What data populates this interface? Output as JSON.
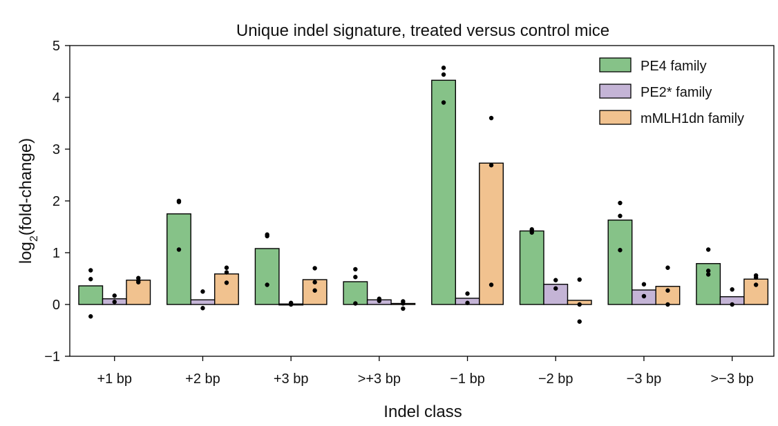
{
  "chart_data": {
    "type": "bar",
    "title": "Unique indel signature, treated versus control mice",
    "xlabel": "Indel class",
    "ylabel_main": "log",
    "ylabel_sub": "2",
    "ylabel_rest": "(fold-change)",
    "ylim": [
      -1,
      5
    ],
    "yticks": [
      -1,
      0,
      1,
      2,
      3,
      4,
      5
    ],
    "ytick_labels": [
      "−1",
      "0",
      "1",
      "2",
      "3",
      "4",
      "5"
    ],
    "categories": [
      "+1 bp",
      "+2 bp",
      "+3 bp",
      ">+3 bp",
      "−1 bp",
      "−2 bp",
      "−3 bp",
      ">−3 bp"
    ],
    "legend_position": "top-right",
    "series": [
      {
        "name": "PE4 family",
        "color": "#86c288",
        "values": [
          0.36,
          1.75,
          1.08,
          0.44,
          4.33,
          1.42,
          1.63,
          0.79
        ],
        "points": [
          [
            0.66,
            0.49,
            -0.23
          ],
          [
            2.0,
            1.98,
            1.06
          ],
          [
            1.35,
            1.32,
            0.38
          ],
          [
            0.68,
            0.53,
            0.02
          ],
          [
            4.57,
            4.44,
            3.9
          ],
          [
            1.45,
            1.42,
            1.39
          ],
          [
            1.96,
            1.71,
            1.05
          ],
          [
            1.06,
            0.65,
            0.58
          ]
        ]
      },
      {
        "name": "PE2* family",
        "color": "#c4b4d6",
        "values": [
          0.11,
          0.09,
          0.01,
          0.09,
          0.12,
          0.39,
          0.28,
          0.15
        ],
        "points": [
          [
            0.17,
            0.05
          ],
          [
            0.25,
            -0.07
          ],
          [
            0.03,
            0.0
          ],
          [
            0.11,
            0.07
          ],
          [
            0.21,
            0.03
          ],
          [
            0.47,
            0.31
          ],
          [
            0.39,
            0.16
          ],
          [
            0.29,
            0.0
          ]
        ]
      },
      {
        "name": "mMLH1dn family",
        "color": "#f1c28f",
        "values": [
          0.47,
          0.59,
          0.48,
          0.02,
          2.73,
          0.08,
          0.35,
          0.49
        ],
        "points": [
          [
            0.51,
            0.46,
            0.43
          ],
          [
            0.71,
            0.62,
            0.42
          ],
          [
            0.7,
            0.43,
            0.27
          ],
          [
            0.06,
            0.02,
            -0.08
          ],
          [
            3.6,
            2.69,
            0.38
          ],
          [
            0.48,
            0.0,
            -0.33
          ],
          [
            0.71,
            0.27,
            0.0
          ],
          [
            0.56,
            0.52,
            0.38
          ]
        ]
      }
    ]
  }
}
